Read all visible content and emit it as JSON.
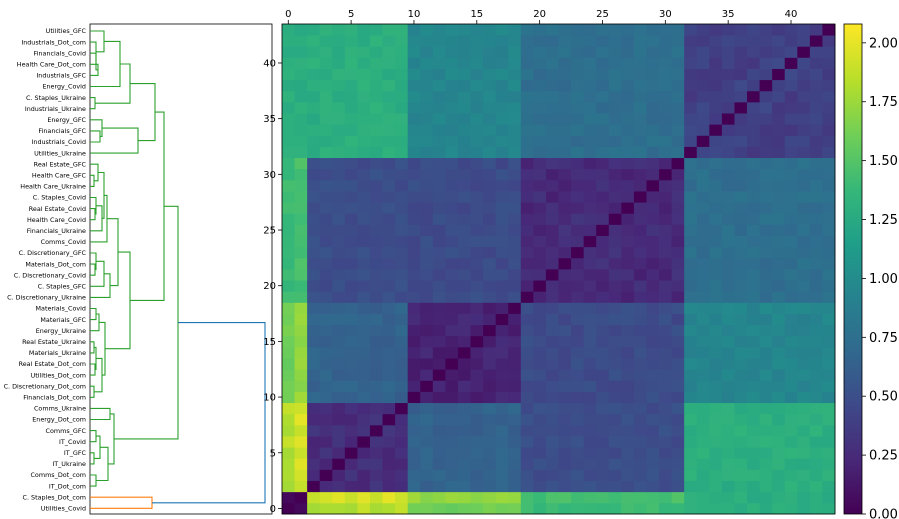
{
  "chart_data": {
    "type": "heatmap",
    "description_axis": "Correlation distance matrix of sector returns with hierarchical clustering dendrogram",
    "dendrogram": {
      "leaves_top_to_bottom": [
        "Utilities_GFC",
        "Industrials_Dot_com",
        "Financials_Covid",
        "Health Care_Dot_com",
        "Industrials_GFC",
        "Energy_Covid",
        "C. Staples_Ukraine",
        "Industrials_Ukraine",
        "Energy_GFC",
        "Financials_GFC",
        "Industrials_Covid",
        "Utilities_Ukraine",
        "Real Estate_GFC",
        "Health Care_GFC",
        "Health Care_Ukraine",
        "C. Staples_Covid",
        "Real Estate_Covid",
        "Health Care_Covid",
        "Financials_Ukraine",
        "Comms_Covid",
        "C. Discretionary_GFC",
        "Materials_Dot_com",
        "C. Discretionary_Covid",
        "C. Staples_GFC",
        "C. Discretionary_Ukraine",
        "Materials_Covid",
        "Materials_GFC",
        "Energy_Ukraine",
        "Real Estate_Ukraine",
        "Materials_Ukraine",
        "Real Estate_Dot_com",
        "Utilities_Dot_com",
        "C. Discretionary_Dot_com",
        "Financials_Dot_com",
        "Comms_Ukraine",
        "Energy_Dot_com",
        "Comms_GFC",
        "IT_Covid",
        "IT_GFC",
        "IT_Ukraine",
        "Comms_Dot_com",
        "IT_Dot_com",
        "C. Staples_Dot_com",
        "Utilities_Covid"
      ],
      "cluster_colors": {
        "large_cluster": "#2ca02c",
        "small_cluster": "#ff7f0e",
        "root_link": "#1f77b4"
      }
    },
    "heatmap": {
      "x_ticks": [
        0,
        5,
        10,
        15,
        20,
        25,
        30,
        35,
        40
      ],
      "y_ticks": [
        0,
        5,
        10,
        15,
        20,
        25,
        30,
        35,
        40
      ],
      "n": 44,
      "colormap": "viridis",
      "vmin": 0.0,
      "vmax": 2.08,
      "blocks": [
        {
          "name": "A",
          "range": [
            2,
            9
          ],
          "within": 0.28
        },
        {
          "name": "B",
          "range": [
            10,
            18
          ],
          "within": 0.2
        },
        {
          "name": "C",
          "range": [
            19,
            31
          ],
          "within": 0.25
        },
        {
          "name": "D",
          "range": [
            32,
            43
          ],
          "within": 0.4
        }
      ],
      "between_blocks": {
        "A-B": 0.65,
        "A-C": 0.5,
        "A-D": 1.3,
        "B-C": 0.48,
        "B-D": 0.95,
        "C-D": 0.75
      },
      "pair_0_1": 0.05,
      "row_0_to_blocks": {
        "A": 1.85,
        "B": 1.6,
        "C": 1.4,
        "D": 1.3
      },
      "row_1_to_blocks": {
        "A": 1.95,
        "B": 1.75,
        "C": 1.45,
        "D": 1.3
      }
    },
    "colorbar": {
      "ticks": [
        "0.00",
        "0.25",
        "0.50",
        "0.75",
        "1.00",
        "1.25",
        "1.50",
        "1.75",
        "2.00"
      ],
      "min": 0.0,
      "max": 2.08
    }
  }
}
